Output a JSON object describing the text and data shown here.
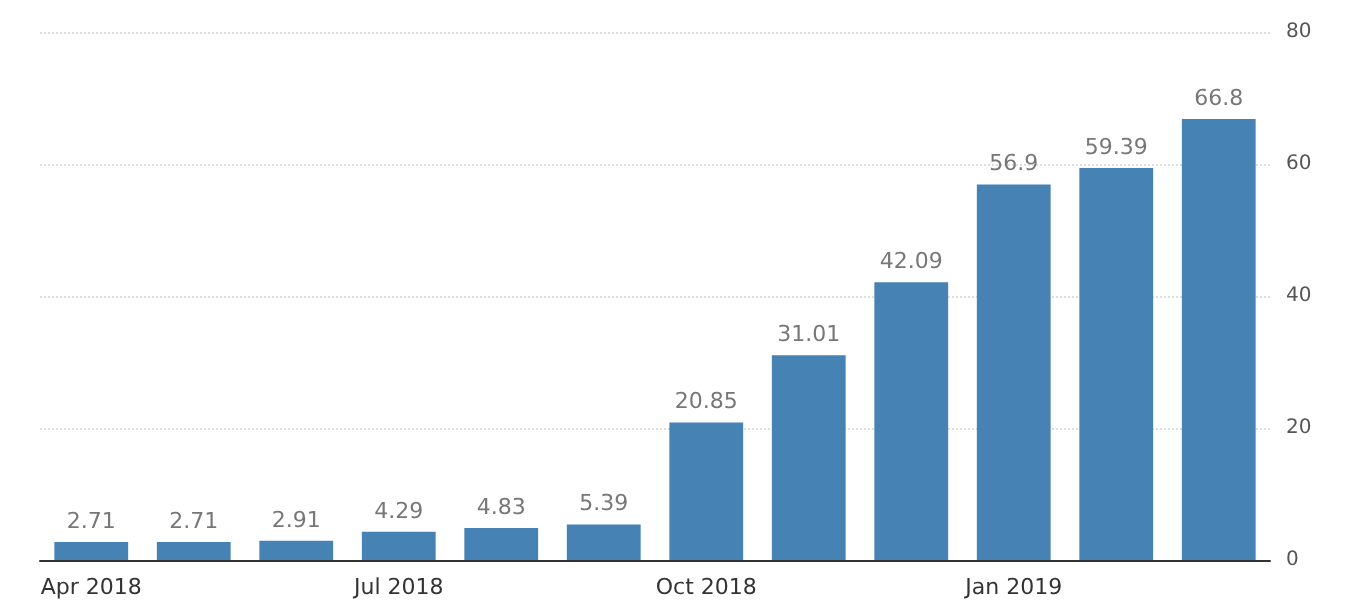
{
  "chart_data": {
    "type": "bar",
    "categories": [
      "Apr 2018",
      null,
      null,
      "Jul 2018",
      null,
      null,
      "Oct 2018",
      null,
      null,
      "Jan 2019",
      null,
      null
    ],
    "values": [
      2.71,
      2.71,
      2.91,
      4.29,
      4.83,
      5.39,
      20.85,
      31.01,
      42.09,
      56.9,
      59.39,
      66.8
    ],
    "color": "#4682b4",
    "ylim": [
      0,
      80
    ],
    "yticks": [
      0,
      20,
      40,
      60,
      80
    ],
    "grid": "y",
    "data_labels": true
  }
}
